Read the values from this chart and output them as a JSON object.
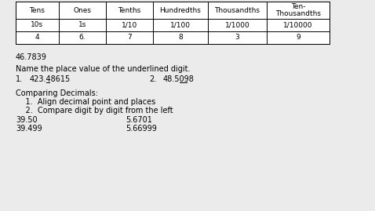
{
  "bg_color": "#ebebeb",
  "table_bg": "#ffffff",
  "table_headers": [
    "Tens",
    "Ones",
    "Tenths",
    "Hundredths",
    "Thousandths",
    "Ten-\nThousandths"
  ],
  "table_row1": [
    "10s",
    "1s",
    "1/10",
    "1/100",
    "1/1000",
    "1/10000"
  ],
  "table_row2": [
    "4",
    "6.",
    "7",
    "8",
    "3",
    "9"
  ],
  "col_positions": [
    20,
    75,
    135,
    195,
    265,
    340,
    420
  ],
  "row_tops": [
    2,
    24,
    40,
    56
  ],
  "number_example": "46.7839",
  "place_value_label": "Name the place value of the underlined digit.",
  "pv_item1_num": "1.",
  "pv_item1_text": "423.48615",
  "pv_item2_num": "2.",
  "pv_item2_text": "48.5098",
  "comparing_title": "Comparing Decimals:",
  "comparing_step1": "    1.  Align decimal point and places",
  "comparing_step2": "    2.  Compare digit by digit from the left",
  "compare_col1_row1": "39.50",
  "compare_col1_row2": "39.499",
  "compare_col2_row1": "5.6701",
  "compare_col2_row2": "5.66999",
  "font_size": 7.0,
  "table_font_size": 6.5
}
